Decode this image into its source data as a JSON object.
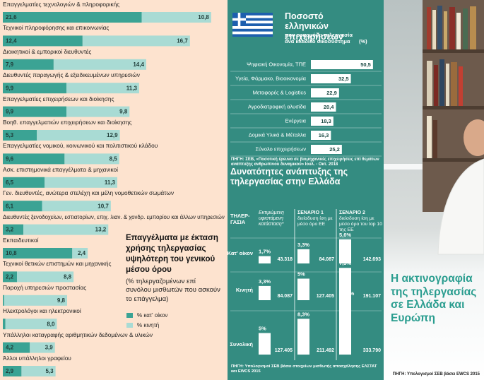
{
  "headline": "Η ακτινογραφία της τηλεργασίας σε Ελλάδα και Ευρώπη",
  "chart_data": [
    {
      "type": "bar",
      "orientation": "horizontal",
      "stacked": true,
      "title": "Επαγγέλματα με έκταση χρήσης τηλεργασίας υψηλότερη του γενικού μέσου όρου",
      "subtitle": "(% τηλεργαζομένων επί συνόλου μισθωτών που ασκούν το επάγγελμα)",
      "source": "ΠΗΓΗ: Υπολογισμοί ΣΕΒ βάσει EWCS 2015",
      "categories": [
        "Επαγγελματίες τεχνολογιών & πληροφορικής",
        "Τεχνικοί πληροφόρησης και επικοινωνίας",
        "Διοικητικοί & εμπορικοί διευθυντές",
        "Διευθυντές παραγωγής & εξειδικευμένων υπηρεσιών",
        "Επαγγελματίες επιχειρήσεων και διοίκησης",
        "Βοηθ. επαγγελματιών επιχειρήσεων και διοίκησης",
        "Επαγγελματίες νομικού, κοινωνικού και πολιτιστικού κλάδου",
        "Ασκ. επιστημονικά επαγγέλματα & μηχανικοί",
        "Γεν. διευθυντές, ανώτερα στελέχη και μέλη νομοθετικών σωμάτων",
        "Διευθυντές ξενοδοχείων, εστιατορίων, επιχ. λιαν. & χονδρ. εμπορίου και άλλων υπηρεσιών",
        "Εκπαιδευτικοί",
        "Τεχνικοί θετικών επιστημών και μηχανικής",
        "Παροχή υπηρεσιών προστασίας",
        "Ηλεκτρολόγοι και ηλεκτρονικοί",
        "Υπάλληλοι καταγραφής αριθμητικών δεδομένων & υλικών",
        "Άλλοι υπάλληλοι γραφείου"
      ],
      "series": [
        {
          "name": "% κατ' οίκον",
          "color": "#3ba394",
          "values": [
            21.6,
            12.4,
            7.9,
            9.9,
            9.9,
            5.3,
            9.6,
            6.5,
            6.1,
            3.2,
            10.8,
            2.2,
            0.2,
            0.4,
            4.2,
            2.9
          ],
          "value_labels": [
            "21,6",
            "12,4",
            "7,9",
            "9,9",
            "9,9",
            "5,3",
            "9,6",
            "6,5",
            "6,1",
            "3,2",
            "10,8",
            "2,2",
            "0,2",
            "0,4",
            "4,2",
            "2,9"
          ]
        },
        {
          "name": "% κινητή",
          "color": "#a9dbd4",
          "values": [
            10.8,
            16.7,
            14.4,
            11.3,
            9.8,
            12.9,
            8.5,
            11.3,
            10.7,
            13.2,
            2.4,
            8.8,
            9.8,
            8.0,
            3.9,
            5.3
          ],
          "value_labels": [
            "10,8",
            "16,7",
            "14,4",
            "11,3",
            "9,8",
            "12,9",
            "8,5",
            "11,3",
            "10,7",
            "13,2",
            "2,4",
            "8,8",
            "9,8",
            "8,0",
            "3,9",
            "5,3"
          ]
        }
      ]
    },
    {
      "type": "bar",
      "orientation": "horizontal",
      "title": "Ποσοστό ελληνικών επιχειρήσεων",
      "subtitle": "που εφαρμόζει τηλεργασία ανά κλαδικό οικοσύστημα",
      "unit": "(%)",
      "color": "#ffffff",
      "categories": [
        "Ψηφιακή Οικονομία, ΤΠΕ",
        "Υγεία, Φάρμακο, Βιοοικονομία",
        "Μεταφορές & Logistics",
        "Αγροδιατροφική αλυσίδα",
        "Ενέργεια",
        "Δομικά Υλικά & Μέταλλα",
        "Σύνολο επιχειρήσεων"
      ],
      "values": [
        50.5,
        32.5,
        22.9,
        20.4,
        18.3,
        16.3,
        25.2
      ],
      "value_labels": [
        "50,5",
        "32,5",
        "22,9",
        "20,4",
        "18,3",
        "16,3",
        "25,2"
      ],
      "source": "ΠΗΓΗ: ΣΕΒ, «Ποσοτική έρευνα σε βιομηχανικές επιχειρήσεις επί θεμάτων ανάπτυξης ανθρώπινου δυναμικού» Ιουλ. - Οκτ. 2018"
    },
    {
      "type": "column",
      "title": "Δυνατότητες ανάπτυξης της τηλεργασίας στην Ελλάδα",
      "row_header": "ΤΗΛΕΡ-ΓΑΣΙΑ",
      "categories": [
        "Κατ' οίκον",
        "Κινητή",
        "Συνολική"
      ],
      "series": [
        {
          "name": "Εκτιμώμενη υφιστάμενη κατάσταση*",
          "color": "#ffffff",
          "values": [
            1.7,
            3.3,
            5
          ],
          "value_labels": [
            "1,7%",
            "3,3%",
            "5%"
          ],
          "counts": [
            43318,
            84087,
            127405
          ],
          "count_labels": [
            "43.318",
            "84.087",
            "127.405"
          ]
        },
        {
          "name": "ΣΕΝΑΡΙΟ 1",
          "description": "διείσδυση ίση με μέσο όρο ΕΕ",
          "color": "#ffffff",
          "values": [
            3.3,
            5,
            8.3
          ],
          "value_labels": [
            "3,3%",
            "5%",
            "8,3%"
          ],
          "counts": [
            84087,
            127405,
            211492
          ],
          "count_labels": [
            "84.087",
            "127.405",
            "211.492"
          ]
        },
        {
          "name": "ΣΕΝΑΡΙΟ 2",
          "description": "διείσδυση ίση με μέσο όρο του top 10 της ΕΕ",
          "color": "#ffffff",
          "values": [
            5.6,
            7.5,
            13.1
          ],
          "value_labels": [
            "5,6%",
            "7,5%",
            "13,1%"
          ],
          "counts": [
            142693,
            191107,
            333790
          ],
          "count_labels": [
            "142.693",
            "191.107",
            "333.790"
          ]
        }
      ],
      "source": "ΠΗΓΗ: Υπολογισμοί ΣΕΒ βάσει στοιχείων μισθωτής απασχόλησης ΕΛΣΤΑΤ και EWCS 2015"
    }
  ]
}
